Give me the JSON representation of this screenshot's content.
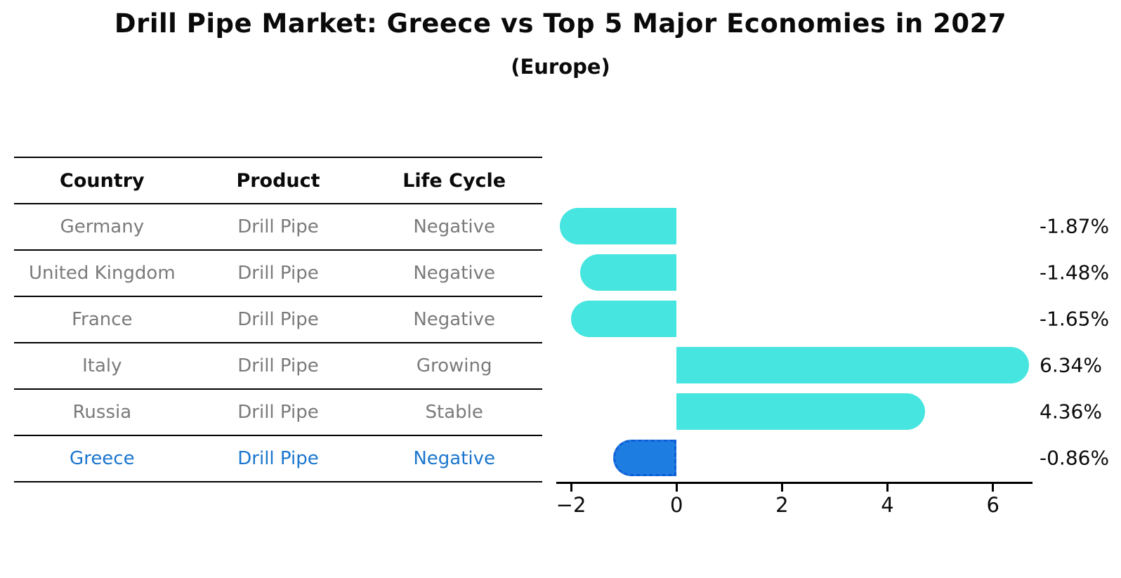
{
  "header": {
    "title": "Drill Pipe Market: Greece vs Top 5 Major Economies in 2027",
    "subtitle": "(Europe)"
  },
  "table": {
    "columns": [
      "Country",
      "Product",
      "Life Cycle"
    ],
    "rows": [
      {
        "country": "Germany",
        "product": "Drill Pipe",
        "life_cycle": "Negative",
        "highlight": false
      },
      {
        "country": "United Kingdom",
        "product": "Drill Pipe",
        "life_cycle": "Negative",
        "highlight": false
      },
      {
        "country": "France",
        "product": "Drill Pipe",
        "life_cycle": "Negative",
        "highlight": false
      },
      {
        "country": "Italy",
        "product": "Drill Pipe",
        "life_cycle": "Growing",
        "highlight": false
      },
      {
        "country": "Russia",
        "product": "Drill Pipe",
        "life_cycle": "Stable",
        "highlight": false
      },
      {
        "country": "Greece",
        "product": "Drill Pipe",
        "life_cycle": "Negative",
        "highlight": true
      }
    ]
  },
  "chart_data": {
    "type": "bar",
    "orientation": "horizontal",
    "title": "Drill Pipe Market: Greece vs Top 5 Major Economies in 2027",
    "subtitle": "(Europe)",
    "categories": [
      "Germany",
      "United Kingdom",
      "France",
      "Italy",
      "Russia",
      "Greece"
    ],
    "values": [
      -1.87,
      -1.48,
      -1.65,
      6.34,
      4.36,
      -0.86
    ],
    "value_labels": [
      "-1.87%",
      "-1.48%",
      "-1.65%",
      "6.34%",
      "4.36%",
      "-0.86%"
    ],
    "highlight_index": 5,
    "x_ticks": [
      -2,
      0,
      2,
      4,
      6
    ],
    "x_tick_labels": [
      "−2",
      "0",
      "2",
      "4",
      "6"
    ],
    "xlim": [
      -2.28,
      6.75
    ],
    "grid": false,
    "legend": "none",
    "colors": {
      "bar": "#46E5E0",
      "highlight_bar": "#1E7DE1",
      "highlight_border": "#0E5FD8",
      "row_text": "#7a7a7a",
      "highlight_text": "#1b76ce",
      "axis": "#000000",
      "label_text": "#0a0a0a"
    }
  }
}
